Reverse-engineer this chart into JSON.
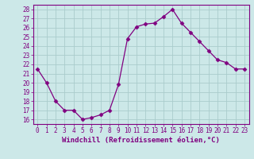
{
  "x": [
    0,
    1,
    2,
    3,
    4,
    5,
    6,
    7,
    8,
    9,
    10,
    11,
    12,
    13,
    14,
    15,
    16,
    17,
    18,
    19,
    20,
    21,
    22,
    23
  ],
  "y": [
    21.5,
    20.0,
    18.0,
    17.0,
    17.0,
    16.0,
    16.2,
    16.5,
    17.0,
    19.8,
    24.8,
    26.1,
    26.4,
    26.5,
    27.2,
    28.0,
    26.5,
    25.5,
    24.5,
    23.5,
    22.5,
    22.2,
    21.5,
    21.5
  ],
  "line_color": "#800080",
  "marker": "D",
  "marker_size": 2.5,
  "bg_color": "#cce8e8",
  "grid_color": "#aacccc",
  "xlabel": "Windchill (Refroidissement éolien,°C)",
  "xlim": [
    -0.5,
    23.5
  ],
  "ylim": [
    15.5,
    28.5
  ],
  "yticks": [
    16,
    17,
    18,
    19,
    20,
    21,
    22,
    23,
    24,
    25,
    26,
    27,
    28
  ],
  "xticks": [
    0,
    1,
    2,
    3,
    4,
    5,
    6,
    7,
    8,
    9,
    10,
    11,
    12,
    13,
    14,
    15,
    16,
    17,
    18,
    19,
    20,
    21,
    22,
    23
  ],
  "tick_label_size": 5.5,
  "xlabel_size": 6.5,
  "xlabel_color": "#800080",
  "axis_color": "#800080",
  "tick_color": "#800080"
}
